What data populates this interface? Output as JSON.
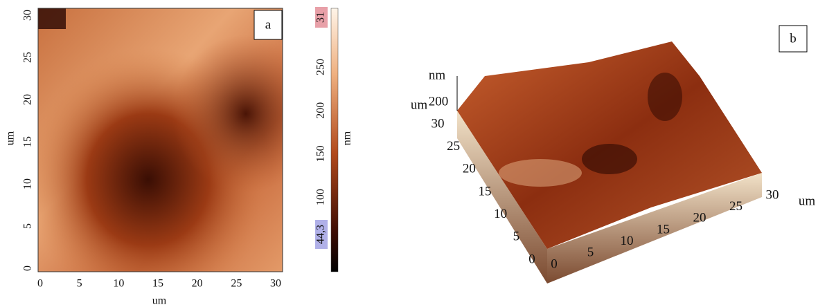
{
  "panel_a": {
    "label": "a",
    "x_axis": {
      "title": "um",
      "ticks": [
        0,
        5,
        10,
        15,
        20,
        25,
        30
      ]
    },
    "y_axis": {
      "title": "um",
      "ticks": [
        0,
        5,
        10,
        15,
        20,
        25,
        30
      ]
    }
  },
  "colorbar": {
    "title": "nm",
    "max_label": "31",
    "min_label": "44,3",
    "ticks": [
      250,
      200,
      150,
      100
    ]
  },
  "panel_b": {
    "label": "b",
    "x_axis": {
      "title": "um",
      "ticks": [
        0,
        5,
        10,
        15,
        20,
        25,
        30
      ]
    },
    "y_axis": {
      "title": "um",
      "ticks": [
        0,
        5,
        10,
        15,
        20,
        25,
        30
      ]
    },
    "z_axis": {
      "title": "nm",
      "ticks": [
        200
      ]
    }
  }
}
